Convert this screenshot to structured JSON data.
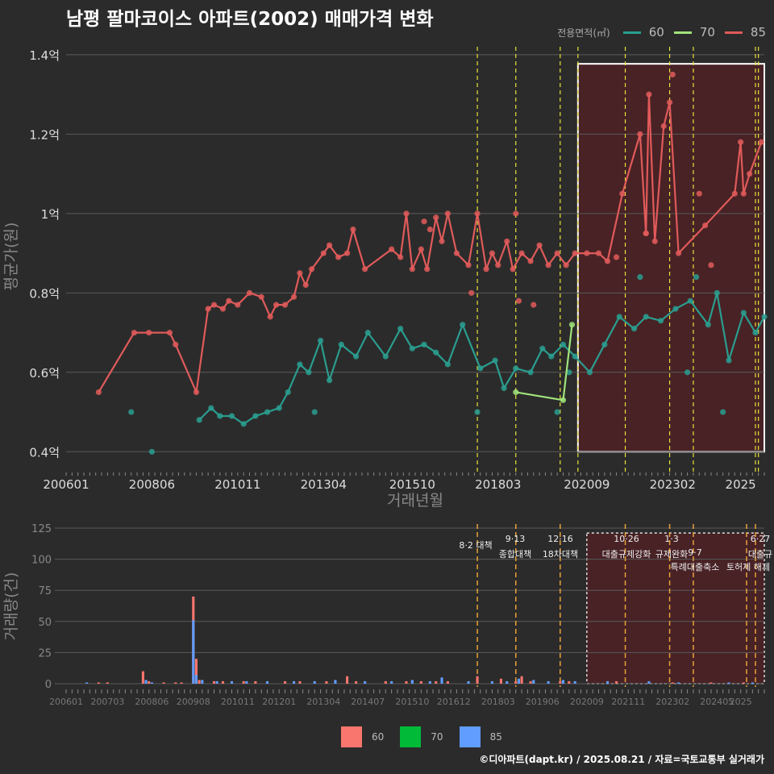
{
  "title": "남평 팔마코이스 아파트(2002) 매매가격 변화",
  "footer": "©디아파트(dapt.kr) / 2025.08.21 / 자료=국토교통부 실거래가",
  "legend": {
    "title": "전용면적(㎡)",
    "items": [
      {
        "label": "60",
        "line_color": "#2a9d8f",
        "bar_color": "#f8766d"
      },
      {
        "label": "70",
        "line_color": "#a0e37a",
        "bar_color": "#00ba38"
      },
      {
        "label": "85",
        "line_color": "#e05a5a",
        "bar_color": "#619cff"
      }
    ]
  },
  "chart_data": [
    {
      "type": "line",
      "xlabel": "거래년월",
      "ylabel": "평균가(원)",
      "x_ticks": [
        "200601",
        "200806",
        "201011",
        "201304",
        "201510",
        "201803",
        "202009",
        "202302",
        "2025"
      ],
      "y_ticks": [
        "0.4억",
        "0.6억",
        "0.8억",
        "1억",
        "1.2억",
        "1.4억"
      ],
      "ylim": [
        0.36,
        1.42
      ],
      "xlim": [
        "2006-01",
        "2025-09"
      ],
      "policy_dates": [
        "2017-08",
        "2018-09",
        "2019-12",
        "2020-06",
        "2021-10",
        "2023-01",
        "2023-09",
        "2025-06",
        "2025-07"
      ],
      "highlight_range": [
        "2020-06",
        "2025-09"
      ],
      "series": [
        {
          "name": "85",
          "color": "#e05a5a",
          "line": [
            [
              "2006-12",
              0.55
            ],
            [
              "2007-12",
              0.7
            ],
            [
              "2008-05",
              0.7
            ],
            [
              "2008-12",
              0.7
            ],
            [
              "2009-02",
              0.67
            ],
            [
              "2009-09",
              0.55
            ],
            [
              "2010-01",
              0.76
            ],
            [
              "2010-03",
              0.77
            ],
            [
              "2010-06",
              0.76
            ],
            [
              "2010-08",
              0.78
            ],
            [
              "2010-11",
              0.77
            ],
            [
              "2011-03",
              0.8
            ],
            [
              "2011-07",
              0.79
            ],
            [
              "2011-10",
              0.74
            ],
            [
              "2011-12",
              0.77
            ],
            [
              "2012-03",
              0.77
            ],
            [
              "2012-06",
              0.79
            ],
            [
              "2012-08",
              0.85
            ],
            [
              "2012-10",
              0.82
            ],
            [
              "2012-12",
              0.86
            ],
            [
              "2013-04",
              0.9
            ],
            [
              "2013-06",
              0.92
            ],
            [
              "2013-09",
              0.89
            ],
            [
              "2013-12",
              0.9
            ],
            [
              "2014-02",
              0.96
            ],
            [
              "2014-06",
              0.86
            ],
            [
              "2015-03",
              0.91
            ],
            [
              "2015-06",
              0.89
            ],
            [
              "2015-08",
              1.0
            ],
            [
              "2015-10",
              0.86
            ],
            [
              "2016-01",
              0.91
            ],
            [
              "2016-03",
              0.86
            ],
            [
              "2016-06",
              0.99
            ],
            [
              "2016-08",
              0.93
            ],
            [
              "2016-10",
              1.0
            ],
            [
              "2017-01",
              0.9
            ],
            [
              "2017-05",
              0.87
            ],
            [
              "2017-08",
              1.0
            ],
            [
              "2017-11",
              0.86
            ],
            [
              "2018-01",
              0.9
            ],
            [
              "2018-03",
              0.87
            ],
            [
              "2018-06",
              0.93
            ],
            [
              "2018-08",
              0.86
            ],
            [
              "2018-11",
              0.9
            ],
            [
              "2019-02",
              0.88
            ],
            [
              "2019-05",
              0.92
            ],
            [
              "2019-08",
              0.87
            ],
            [
              "2019-11",
              0.9
            ],
            [
              "2020-02",
              0.87
            ],
            [
              "2020-05",
              0.9
            ],
            [
              "2020-09",
              0.9
            ],
            [
              "2021-01",
              0.9
            ],
            [
              "2021-04",
              0.88
            ],
            [
              "2021-09",
              1.05
            ],
            [
              "2022-03",
              1.2
            ],
            [
              "2022-05",
              0.95
            ],
            [
              "2022-06",
              1.3
            ],
            [
              "2022-08",
              0.93
            ],
            [
              "2022-11",
              1.22
            ],
            [
              "2023-01",
              1.28
            ],
            [
              "2023-04",
              0.9
            ],
            [
              "2024-01",
              0.97
            ],
            [
              "2024-11",
              1.05
            ],
            [
              "2025-01",
              1.18
            ],
            [
              "2025-02",
              1.05
            ],
            [
              "2025-04",
              1.1
            ],
            [
              "2025-08",
              1.18
            ]
          ],
          "points": [
            [
              "2016-02",
              0.98
            ],
            [
              "2016-04",
              0.96
            ],
            [
              "2017-06",
              0.8
            ],
            [
              "2018-09",
              1.0
            ],
            [
              "2018-10",
              0.78
            ],
            [
              "2019-03",
              0.77
            ],
            [
              "2021-07",
              0.89
            ],
            [
              "2023-02",
              1.35
            ],
            [
              "2023-11",
              1.05
            ],
            [
              "2024-03",
              0.87
            ],
            [
              "2022-05",
              0.95
            ]
          ]
        },
        {
          "name": "60",
          "color": "#2a9d8f",
          "line": [
            [
              "2009-10",
              0.48
            ],
            [
              "2010-02",
              0.51
            ],
            [
              "2010-05",
              0.49
            ],
            [
              "2010-09",
              0.49
            ],
            [
              "2011-01",
              0.47
            ],
            [
              "2011-05",
              0.49
            ],
            [
              "2011-09",
              0.5
            ],
            [
              "2012-01",
              0.51
            ],
            [
              "2012-04",
              0.55
            ],
            [
              "2012-08",
              0.62
            ],
            [
              "2012-11",
              0.6
            ],
            [
              "2013-03",
              0.68
            ],
            [
              "2013-06",
              0.58
            ],
            [
              "2013-10",
              0.67
            ],
            [
              "2014-03",
              0.64
            ],
            [
              "2014-07",
              0.7
            ],
            [
              "2015-01",
              0.64
            ],
            [
              "2015-06",
              0.71
            ],
            [
              "2015-10",
              0.66
            ],
            [
              "2016-02",
              0.67
            ],
            [
              "2016-06",
              0.65
            ],
            [
              "2016-10",
              0.62
            ],
            [
              "2017-03",
              0.72
            ],
            [
              "2017-09",
              0.61
            ],
            [
              "2018-02",
              0.63
            ],
            [
              "2018-05",
              0.56
            ],
            [
              "2018-09",
              0.61
            ],
            [
              "2019-02",
              0.6
            ],
            [
              "2019-06",
              0.66
            ],
            [
              "2019-09",
              0.64
            ],
            [
              "2020-01",
              0.67
            ],
            [
              "2020-05",
              0.64
            ],
            [
              "2020-10",
              0.6
            ],
            [
              "2021-03",
              0.67
            ],
            [
              "2021-08",
              0.74
            ],
            [
              "2022-01",
              0.71
            ],
            [
              "2022-05",
              0.74
            ],
            [
              "2022-10",
              0.73
            ],
            [
              "2023-03",
              0.76
            ],
            [
              "2023-08",
              0.78
            ],
            [
              "2024-02",
              0.72
            ],
            [
              "2024-05",
              0.8
            ],
            [
              "2024-09",
              0.63
            ],
            [
              "2025-02",
              0.75
            ],
            [
              "2025-06",
              0.7
            ],
            [
              "2025-09",
              0.74
            ]
          ],
          "points": [
            [
              "2007-11",
              0.5
            ],
            [
              "2008-06",
              0.4
            ],
            [
              "2013-01",
              0.5
            ],
            [
              "2017-08",
              0.5
            ],
            [
              "2019-11",
              0.5
            ],
            [
              "2020-03",
              0.6
            ],
            [
              "2023-07",
              0.6
            ],
            [
              "2024-07",
              0.5
            ],
            [
              "2022-03",
              0.84
            ],
            [
              "2023-10",
              0.84
            ]
          ]
        },
        {
          "name": "70",
          "color": "#a0e37a",
          "line": [
            [
              "2018-09",
              0.55
            ],
            [
              "2020-01",
              0.53
            ],
            [
              "2020-04",
              0.72
            ]
          ],
          "points": []
        }
      ]
    },
    {
      "type": "bar",
      "xlabel": "",
      "ylabel": "거래량(건)",
      "x_ticks": [
        "200601",
        "200703",
        "200806",
        "200908",
        "201011",
        "201201",
        "201304",
        "201407",
        "201510",
        "201612",
        "201803",
        "201906",
        "202009",
        "202111",
        "202302",
        "202405",
        "2025"
      ],
      "y_ticks": [
        "0",
        "25",
        "50",
        "75",
        "100",
        "125"
      ],
      "ylim": [
        0,
        125
      ],
      "annotations": [
        {
          "label": "8·2 대책",
          "date": "2017-08"
        },
        {
          "label": "9·13",
          "sub": "종합대책",
          "date": "2018-09"
        },
        {
          "label": "12·16",
          "sub": "18차대책",
          "date": "2019-12"
        },
        {
          "label": "10·26",
          "sub": "대출규제강화",
          "date": "2021-10"
        },
        {
          "label": "1·3",
          "sub": "규제완화",
          "date": "2023-01"
        },
        {
          "label": "9·7",
          "sub": "특례대출축소",
          "date": "2023-09"
        },
        {
          "label": "토허제 해제",
          "date": "2025-03"
        },
        {
          "label": "6·27",
          "sub": "대출규",
          "date": "2025-06"
        }
      ],
      "series": [
        {
          "name": "60",
          "color": "#f8766d",
          "values": [
            [
              "2006-12",
              1
            ],
            [
              "2007-03",
              1
            ],
            [
              "2008-03",
              10
            ],
            [
              "2008-05",
              2
            ],
            [
              "2008-10",
              1
            ],
            [
              "2009-02",
              1
            ],
            [
              "2009-04",
              1
            ],
            [
              "2009-08",
              70
            ],
            [
              "2009-09",
              20
            ],
            [
              "2009-10",
              3
            ],
            [
              "2010-03",
              2
            ],
            [
              "2010-06",
              2
            ],
            [
              "2011-01",
              2
            ],
            [
              "2011-05",
              2
            ],
            [
              "2012-03",
              2
            ],
            [
              "2012-08",
              2
            ],
            [
              "2013-05",
              2
            ],
            [
              "2013-12",
              6
            ],
            [
              "2014-03",
              2
            ],
            [
              "2015-01",
              2
            ],
            [
              "2015-08",
              2
            ],
            [
              "2016-01",
              2
            ],
            [
              "2016-06",
              2
            ],
            [
              "2016-10",
              2
            ],
            [
              "2017-08",
              6
            ],
            [
              "2018-04",
              4
            ],
            [
              "2018-09",
              2
            ],
            [
              "2018-11",
              6
            ],
            [
              "2019-02",
              2
            ],
            [
              "2019-12",
              2
            ],
            [
              "2020-03",
              2
            ],
            [
              "2021-07",
              2
            ],
            [
              "2023-02",
              1
            ],
            [
              "2024-03",
              1
            ],
            [
              "2025-02",
              1
            ]
          ]
        },
        {
          "name": "85",
          "color": "#619cff",
          "values": [
            [
              "2006-08",
              1
            ],
            [
              "2008-04",
              3
            ],
            [
              "2008-06",
              1
            ],
            [
              "2009-08",
              51
            ],
            [
              "2009-09",
              7
            ],
            [
              "2009-11",
              3
            ],
            [
              "2010-04",
              2
            ],
            [
              "2010-09",
              2
            ],
            [
              "2011-02",
              2
            ],
            [
              "2011-09",
              2
            ],
            [
              "2012-06",
              2
            ],
            [
              "2013-01",
              2
            ],
            [
              "2013-08",
              3
            ],
            [
              "2014-06",
              2
            ],
            [
              "2015-03",
              2
            ],
            [
              "2015-10",
              3
            ],
            [
              "2016-04",
              2
            ],
            [
              "2016-08",
              5
            ],
            [
              "2017-05",
              2
            ],
            [
              "2018-01",
              2
            ],
            [
              "2018-06",
              2
            ],
            [
              "2018-10",
              4
            ],
            [
              "2019-03",
              3
            ],
            [
              "2019-08",
              2
            ],
            [
              "2020-01",
              3
            ],
            [
              "2020-05",
              2
            ],
            [
              "2021-04",
              2
            ],
            [
              "2022-06",
              2
            ],
            [
              "2023-04",
              1
            ],
            [
              "2024-09",
              1
            ],
            [
              "2025-05",
              1
            ]
          ]
        }
      ]
    }
  ]
}
